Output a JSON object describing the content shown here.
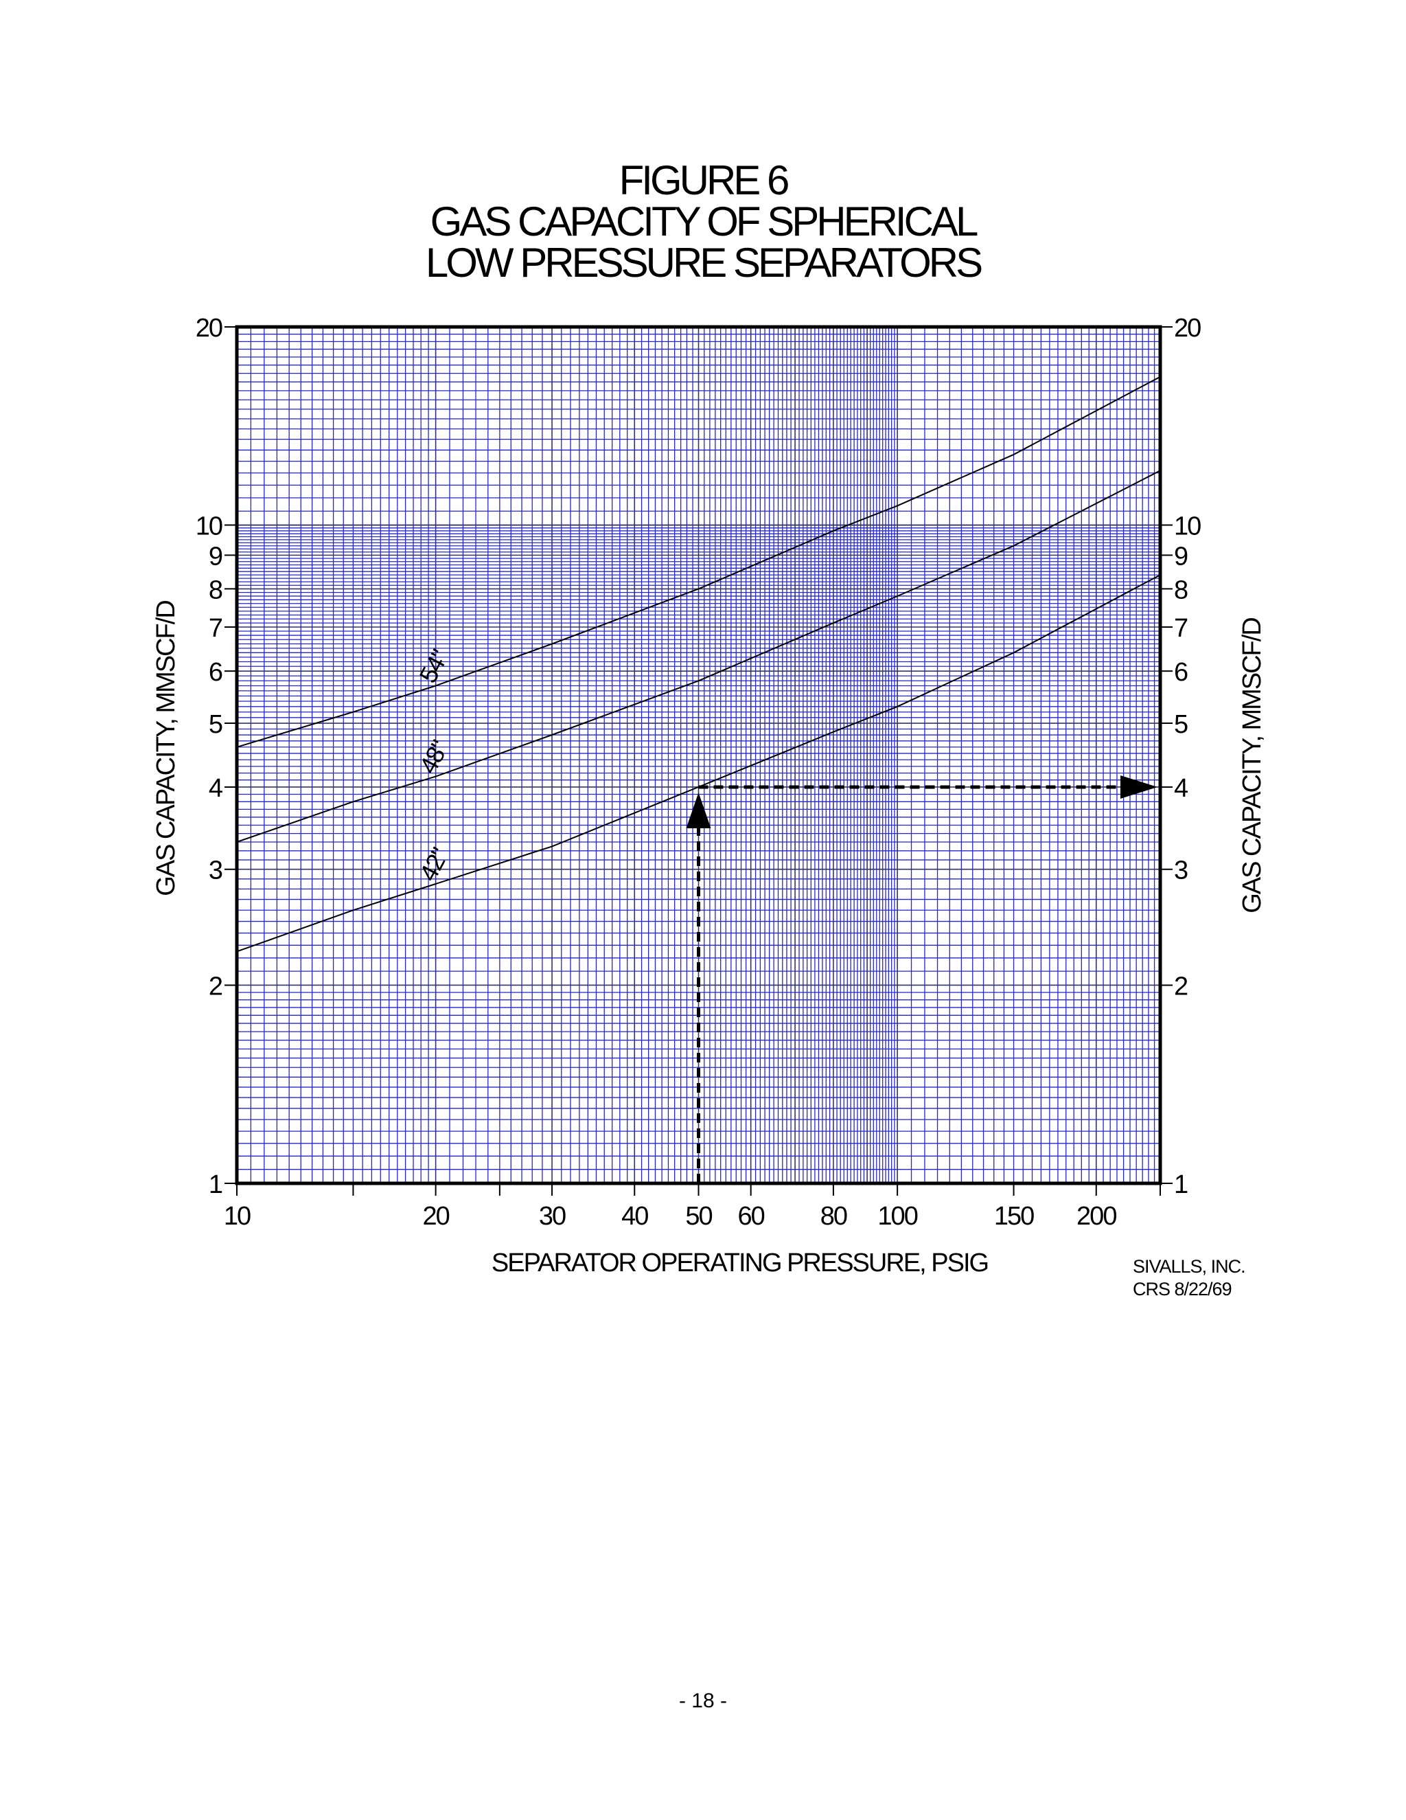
{
  "title_lines": [
    "FIGURE 6",
    "GAS CAPACITY OF SPHERICAL",
    "LOW PRESSURE SEPARATORS"
  ],
  "page_number": "- 18 -",
  "credit": {
    "line1": "SIVALLS, INC.",
    "line2": "CRS   8/22/69"
  },
  "colors": {
    "grid": "#2525cc",
    "curves": "#000000",
    "frame": "#000000"
  },
  "chart_data": {
    "type": "line",
    "title": "GAS CAPACITY OF SPHERICAL LOW PRESSURE SEPARATORS",
    "xlabel": "SEPARATOR OPERATING PRESSURE, PSIG",
    "ylabel": "GAS CAPACITY, MMSCF/D",
    "x_scale": "log",
    "y_scale": "log",
    "xlim": [
      10,
      250
    ],
    "ylim": [
      1,
      20
    ],
    "grid": true,
    "x_ticks": [
      {
        "value": 10,
        "label": "10"
      },
      {
        "value": 20,
        "label": "20"
      },
      {
        "value": 30,
        "label": "30"
      },
      {
        "value": 40,
        "label": "40"
      },
      {
        "value": 50,
        "label": "50"
      },
      {
        "value": 60,
        "label": "60"
      },
      {
        "value": 80,
        "label": "80"
      },
      {
        "value": 100,
        "label": "100"
      },
      {
        "value": 150,
        "label": "150"
      },
      {
        "value": 200,
        "label": "200"
      }
    ],
    "y_ticks": [
      {
        "value": 1,
        "label": "1"
      },
      {
        "value": 2,
        "label": "2"
      },
      {
        "value": 3,
        "label": "3"
      },
      {
        "value": 4,
        "label": "4"
      },
      {
        "value": 5,
        "label": "5"
      },
      {
        "value": 6,
        "label": "6"
      },
      {
        "value": 7,
        "label": "7"
      },
      {
        "value": 8,
        "label": "8"
      },
      {
        "value": 9,
        "label": "9"
      },
      {
        "value": 10,
        "label": "10"
      },
      {
        "value": 20,
        "label": "20"
      }
    ],
    "series": [
      {
        "name": "54\"",
        "x": [
          10,
          15,
          20,
          30,
          50,
          80,
          100,
          150,
          250
        ],
        "y": [
          4.6,
          5.2,
          5.7,
          6.6,
          8.0,
          9.8,
          10.7,
          12.8,
          16.8
        ]
      },
      {
        "name": "48\"",
        "x": [
          10,
          15,
          20,
          30,
          50,
          80,
          100,
          150,
          250
        ],
        "y": [
          3.3,
          3.8,
          4.15,
          4.8,
          5.8,
          7.1,
          7.8,
          9.3,
          12.1
        ]
      },
      {
        "name": "42\"",
        "x": [
          10,
          15,
          20,
          30,
          50,
          80,
          100,
          150,
          250
        ],
        "y": [
          2.25,
          2.6,
          2.85,
          3.25,
          4.0,
          4.85,
          5.3,
          6.4,
          8.4
        ]
      }
    ],
    "example": {
      "x": 50,
      "y": 4.0
    }
  }
}
